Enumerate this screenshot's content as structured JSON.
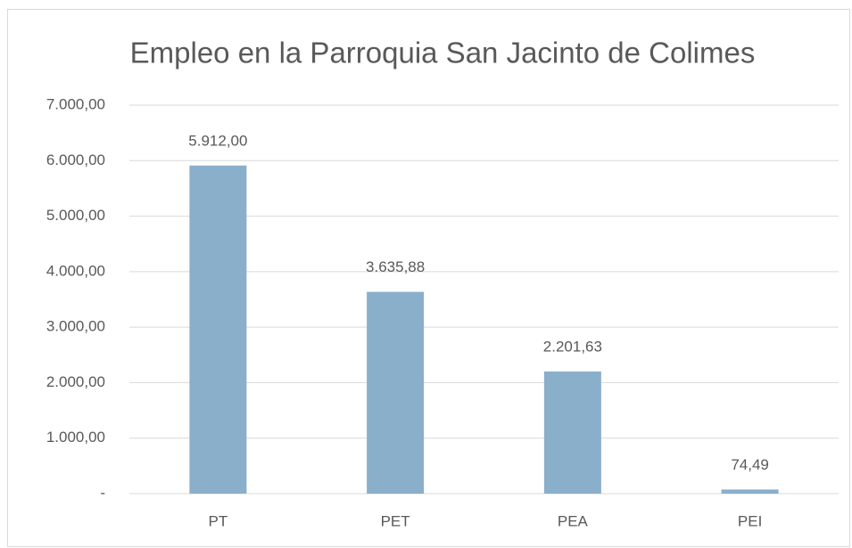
{
  "chart_data": {
    "type": "bar",
    "title": "Empleo en la Parroquia San Jacinto de Colimes",
    "categories": [
      "PT",
      "PET",
      "PEA",
      "PEI"
    ],
    "values": [
      5912,
      3635.88,
      2201.63,
      74.49
    ],
    "value_labels": [
      "5.912,00",
      "3.635,88",
      "2.201,63",
      "74,49"
    ],
    "color": "#8aafcb",
    "ylim": [
      0,
      7000
    ],
    "yticks": [
      {
        "value": 0,
        "label": "-"
      },
      {
        "value": 1000,
        "label": "1.000,00"
      },
      {
        "value": 2000,
        "label": "2.000,00"
      },
      {
        "value": 3000,
        "label": "3.000,00"
      },
      {
        "value": 4000,
        "label": "4.000,00"
      },
      {
        "value": 5000,
        "label": "5.000,00"
      },
      {
        "value": 6000,
        "label": "6.000,00"
      },
      {
        "value": 7000,
        "label": "7.000,00"
      }
    ],
    "grid": true
  }
}
